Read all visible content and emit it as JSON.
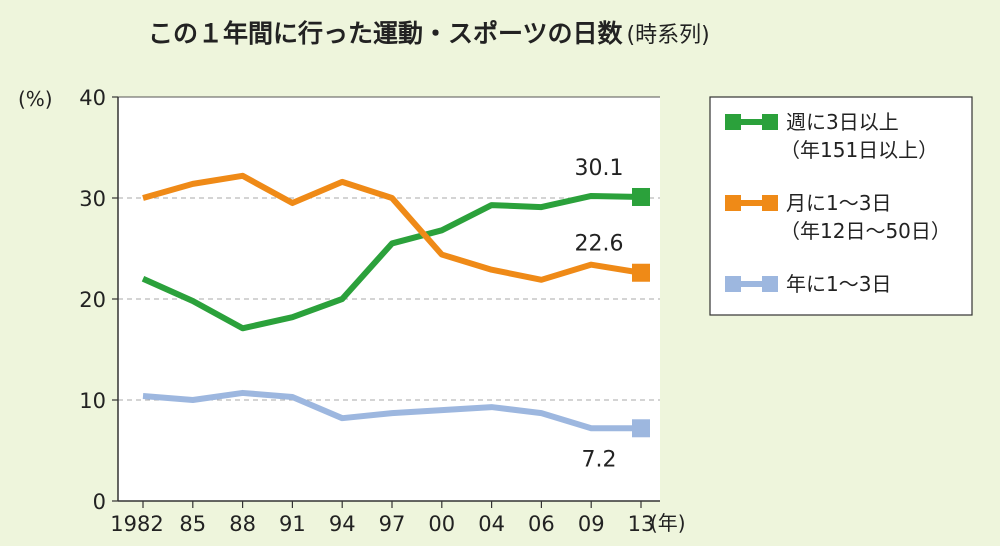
{
  "chart_data": {
    "type": "line",
    "title": "この１年間に行った運動・スポーツの日数",
    "subtitle": "(時系列)",
    "ylabel": "(%)",
    "xlabel": "(年)",
    "ylim": [
      0,
      40
    ],
    "yticks": [
      0,
      10,
      20,
      30,
      40
    ],
    "x": [
      "1982",
      "85",
      "88",
      "91",
      "94",
      "97",
      "00",
      "04",
      "06",
      "09",
      "13"
    ],
    "grid": true,
    "legend_position": "right",
    "series": [
      {
        "name": "週に3日以上",
        "name2": "（年151日以上）",
        "color": "#2ba13b",
        "values": [
          22.0,
          19.8,
          17.1,
          18.2,
          20.0,
          25.5,
          26.8,
          29.3,
          29.1,
          30.2,
          30.1
        ],
        "end_label": "30.1"
      },
      {
        "name": "月に1〜3日",
        "name2": "（年12日〜50日）",
        "color": "#ef8a17",
        "values": [
          30.0,
          31.4,
          32.2,
          29.5,
          31.6,
          30.0,
          24.4,
          22.9,
          21.9,
          23.4,
          22.6
        ],
        "end_label": "22.6"
      },
      {
        "name": "年に1〜3日",
        "name2": "",
        "color": "#9db7df",
        "values": [
          10.4,
          10.0,
          10.7,
          10.3,
          8.2,
          8.7,
          9.0,
          9.3,
          8.7,
          7.2,
          7.2
        ],
        "end_label": "7.2"
      }
    ]
  }
}
